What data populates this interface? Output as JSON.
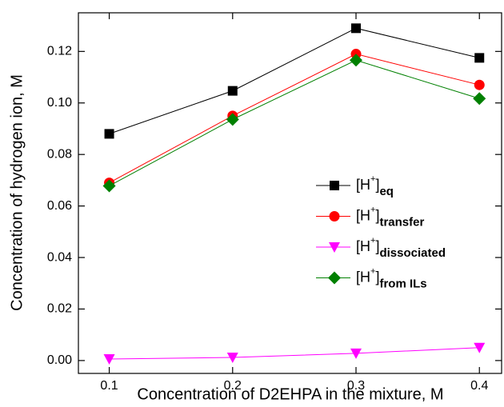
{
  "chart_data": {
    "type": "line",
    "x_label": "Concentration of D2EHPA in the mixture, M",
    "y_label": "Concentration of hydrogen ion, M",
    "x": [
      0.1,
      0.2,
      0.3,
      0.4
    ],
    "series": [
      {
        "name": "[H+]eq",
        "color": "#000000",
        "marker": "square",
        "values": [
          0.088,
          0.1047,
          0.129,
          0.1175
        ]
      },
      {
        "name": "[H+]transfer",
        "color": "#ff0000",
        "marker": "circle",
        "values": [
          0.069,
          0.095,
          0.119,
          0.107
        ]
      },
      {
        "name": "[H+]dissociated",
        "color": "#ff00ff",
        "marker": "triangle-down",
        "values": [
          0.0006,
          0.0012,
          0.0028,
          0.005
        ]
      },
      {
        "name": "[H+]from ILs",
        "color": "#008000",
        "marker": "diamond",
        "values": [
          0.0678,
          0.0936,
          0.1166,
          0.1017
        ]
      }
    ],
    "xlim": [
      0.075,
      0.418
    ],
    "ylim": [
      -0.005,
      0.135
    ],
    "xticks": [
      0.1,
      0.2,
      0.3,
      0.4
    ],
    "yticks": [
      {
        "value": 0,
        "label": "0.00"
      },
      {
        "value": 0.02,
        "label": "0.02"
      },
      {
        "value": 0.04,
        "label": "0.04"
      },
      {
        "value": 0.06,
        "label": "0.06"
      },
      {
        "value": 0.08,
        "label": "0.08"
      },
      {
        "value": 0.1,
        "label": "0.10"
      },
      {
        "value": 0.12,
        "label": "0.12"
      }
    ]
  }
}
